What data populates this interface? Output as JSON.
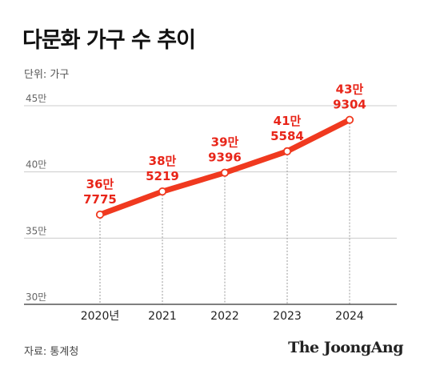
{
  "title": "다문화 가구 수 추이",
  "unit_label": "단위: 가구",
  "source": "자료: 통계청",
  "brand": "The JoongAng",
  "colors": {
    "line": "#f0391f",
    "label": "#e8261a",
    "grid": "#cccccc",
    "axis": "#333333"
  },
  "chart_data": {
    "type": "line",
    "title": "다문화 가구 수 추이",
    "xlabel": "",
    "ylabel": "",
    "categories": [
      "2020년",
      "2021",
      "2022",
      "2023",
      "2024"
    ],
    "x": [
      2020,
      2021,
      2022,
      2023,
      2024
    ],
    "values": [
      367775,
      385219,
      399396,
      415584,
      439304
    ],
    "ylim": [
      300000,
      450000
    ],
    "y_ticks": [
      {
        "value": 450000,
        "label": "45만"
      },
      {
        "value": 400000,
        "label": "40만"
      },
      {
        "value": 350000,
        "label": "35만"
      },
      {
        "value": 300000,
        "label": "30만"
      }
    ],
    "data_labels": [
      {
        "line1": "36만",
        "line2": "7775"
      },
      {
        "line1": "38만",
        "line2": "5219"
      },
      {
        "line1": "39만",
        "line2": "9396"
      },
      {
        "line1": "41만",
        "line2": "5584"
      },
      {
        "line1": "43만",
        "line2": "9304"
      }
    ],
    "grid": true,
    "legend": "none"
  }
}
